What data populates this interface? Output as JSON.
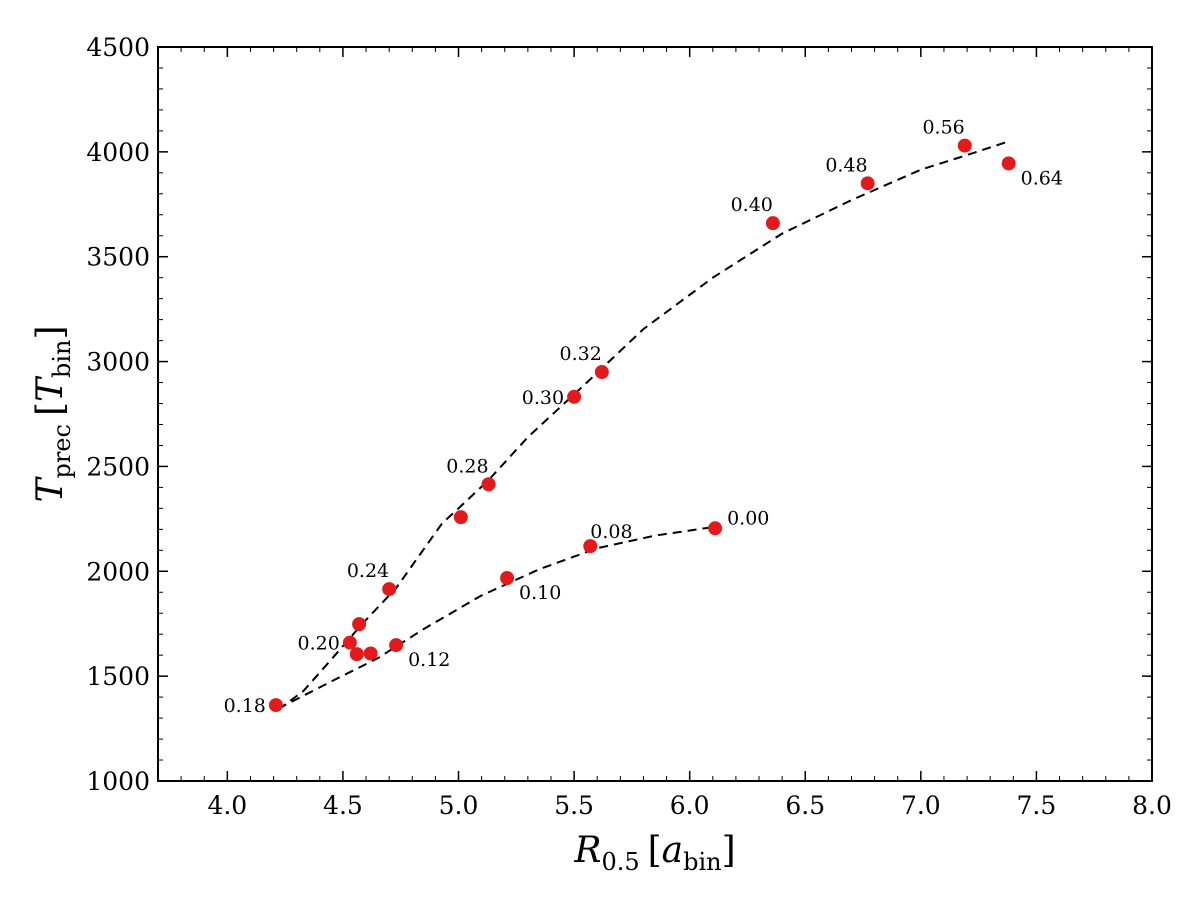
{
  "chart_data": {
    "type": "scatter",
    "title": "",
    "xlabel": {
      "main": "R",
      "sub": "0.5",
      "bracket_main": "a",
      "bracket_sub": "bin"
    },
    "ylabel": {
      "main": "T",
      "sub": "prec",
      "bracket_main": "T",
      "bracket_sub": "bin"
    },
    "xlim": [
      3.7,
      8.0
    ],
    "ylim": [
      1000,
      4500
    ],
    "xticks": [
      4.0,
      4.5,
      5.0,
      5.5,
      6.0,
      6.5,
      7.0,
      7.5,
      8.0
    ],
    "xtick_labels": [
      "4.0",
      "4.5",
      "5.0",
      "5.5",
      "6.0",
      "6.5",
      "7.0",
      "7.5",
      "8.0"
    ],
    "yticks": [
      1000,
      1500,
      2000,
      2500,
      3000,
      3500,
      4000,
      4500
    ],
    "ytick_labels": [
      "1000",
      "1500",
      "2000",
      "2500",
      "3000",
      "3500",
      "4000",
      "4500"
    ],
    "grid": false,
    "colors": {
      "points": "#e31a1c",
      "fit": "#000000"
    },
    "points": [
      {
        "label": "0.00",
        "x": 6.11,
        "y": 2205,
        "label_pos": "right"
      },
      {
        "label": "0.08",
        "x": 5.57,
        "y": 2120,
        "label_pos": "above-right"
      },
      {
        "label": "0.10",
        "x": 5.21,
        "y": 1968,
        "label_pos": "below-right"
      },
      {
        "label": "0.12",
        "x": 4.73,
        "y": 1648,
        "label_pos": "below-right"
      },
      {
        "label": "",
        "x": 4.62,
        "y": 1608,
        "label_pos": "none"
      },
      {
        "label": "",
        "x": 4.56,
        "y": 1605,
        "label_pos": "none"
      },
      {
        "label": "0.18",
        "x": 4.21,
        "y": 1362,
        "label_pos": "left"
      },
      {
        "label": "0.20",
        "x": 4.53,
        "y": 1660,
        "label_pos": "left"
      },
      {
        "label": "",
        "x": 4.57,
        "y": 1748,
        "label_pos": "none"
      },
      {
        "label": "0.24",
        "x": 4.7,
        "y": 1915,
        "label_pos": "above-left"
      },
      {
        "label": "",
        "x": 5.01,
        "y": 2258,
        "label_pos": "none"
      },
      {
        "label": "0.28",
        "x": 5.13,
        "y": 2415,
        "label_pos": "above-left"
      },
      {
        "label": "0.30",
        "x": 5.5,
        "y": 2832,
        "label_pos": "left"
      },
      {
        "label": "0.32",
        "x": 5.62,
        "y": 2950,
        "label_pos": "above-left"
      },
      {
        "label": "0.40",
        "x": 6.36,
        "y": 3660,
        "label_pos": "above-left"
      },
      {
        "label": "0.48",
        "x": 6.77,
        "y": 3850,
        "label_pos": "above-left"
      },
      {
        "label": "0.56",
        "x": 7.19,
        "y": 4030,
        "label_pos": "above-left"
      },
      {
        "label": "0.64",
        "x": 7.38,
        "y": 3945,
        "label_pos": "below-right"
      }
    ],
    "fit_lines": [
      {
        "x": [
          4.22,
          4.45,
          4.65,
          4.85,
          5.1,
          5.35,
          5.6,
          5.85,
          6.11
        ],
        "y": [
          1345,
          1475,
          1585,
          1725,
          1885,
          2010,
          2110,
          2170,
          2212
        ]
      },
      {
        "x": [
          4.22,
          4.33,
          4.45,
          4.58,
          4.73,
          4.93,
          5.0,
          5.13,
          5.3,
          5.55,
          5.8,
          6.1,
          6.4,
          6.7,
          7.0,
          7.2,
          7.38
        ],
        "y": [
          1340,
          1430,
          1580,
          1745,
          1920,
          2230,
          2300,
          2435,
          2640,
          2895,
          3155,
          3400,
          3610,
          3770,
          3915,
          3985,
          4050
        ]
      }
    ]
  }
}
